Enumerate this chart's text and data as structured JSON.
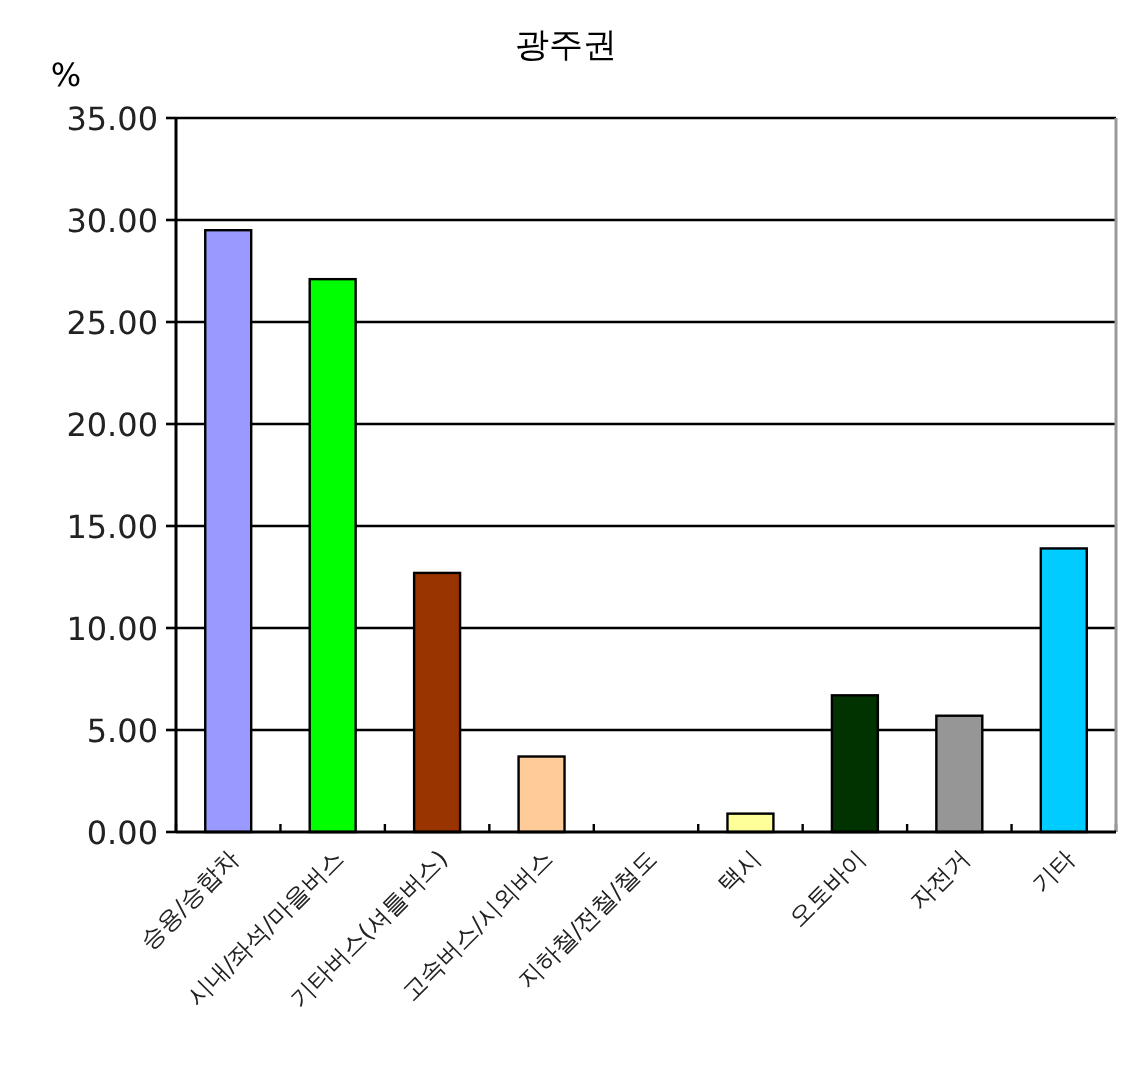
{
  "chart_data": {
    "type": "bar",
    "title": "광주권",
    "ylabel": "%",
    "categories": [
      "승용/승합차",
      "시내/좌석/마을버스",
      "기타버스(셔틀버스)",
      "고속버스/시외버스",
      "지하철/전철/철도",
      "택시",
      "오토바이",
      "자전거",
      "기타"
    ],
    "values": [
      29.5,
      27.1,
      12.7,
      3.7,
      0,
      0.9,
      6.7,
      5.7,
      13.9
    ],
    "colors": [
      "#9999ff",
      "#00ff00",
      "#993300",
      "#ffcc99",
      "#c0c0c0",
      "#ffff99",
      "#003300",
      "#969696",
      "#00ccff"
    ],
    "ylim": [
      0,
      35
    ],
    "yticks": [
      {
        "value": 0,
        "label": "0.00"
      },
      {
        "value": 5,
        "label": "5.00"
      },
      {
        "value": 10,
        "label": "10.00"
      },
      {
        "value": 15,
        "label": "15.00"
      },
      {
        "value": 20,
        "label": "20.00"
      },
      {
        "value": 25,
        "label": "25.00"
      },
      {
        "value": 30,
        "label": "30.00"
      },
      {
        "value": 35,
        "label": "35.00"
      }
    ],
    "grid": "y"
  }
}
